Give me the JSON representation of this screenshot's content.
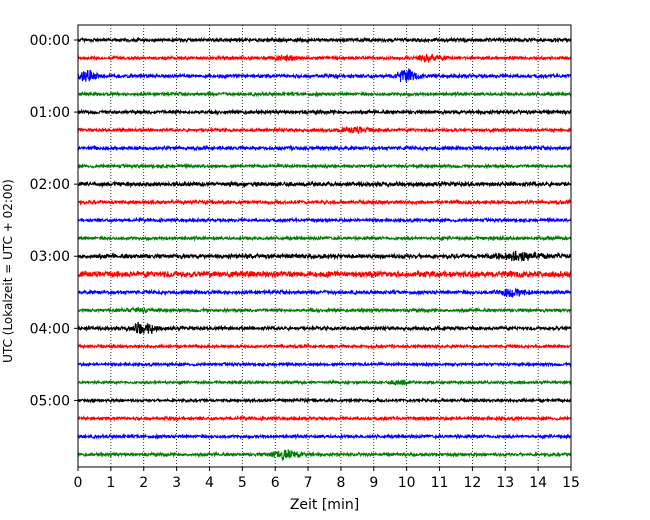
{
  "chart_data": {
    "type": "line",
    "title": "",
    "xlabel": "Zeit  [min]",
    "ylabel": "UTC (Lokalzeit = UTC + 02:00)",
    "xlim": [
      0,
      15
    ],
    "x_ticks": [
      0,
      1,
      2,
      3,
      4,
      5,
      6,
      7,
      8,
      9,
      10,
      11,
      12,
      13,
      14,
      15
    ],
    "y_tick_labels": [
      "00:00",
      "01:00",
      "02:00",
      "03:00",
      "04:00",
      "05:00"
    ],
    "y_tick_rows": [
      0,
      4,
      8,
      12,
      16,
      20
    ],
    "grid": "vertical-dotted",
    "trace_interval_min": 15,
    "row_colors": [
      "#000000",
      "#ff0000",
      "#0000ff",
      "#008000"
    ],
    "traces": [
      {
        "start": "00:00",
        "noise": 0.25,
        "events": []
      },
      {
        "start": "00:15",
        "noise": 0.22,
        "events": [
          {
            "t": 6.3,
            "amp": 0.35,
            "width": 0.6
          },
          {
            "t": 10.7,
            "amp": 0.45,
            "width": 0.7
          }
        ]
      },
      {
        "start": "00:30",
        "noise": 0.25,
        "events": [
          {
            "t": 0.3,
            "amp": 0.9,
            "width": 0.5
          },
          {
            "t": 10.0,
            "amp": 0.8,
            "width": 0.6
          }
        ]
      },
      {
        "start": "00:45",
        "noise": 0.22,
        "events": []
      },
      {
        "start": "01:00",
        "noise": 0.25,
        "events": []
      },
      {
        "start": "01:15",
        "noise": 0.22,
        "events": [
          {
            "t": 8.5,
            "amp": 0.35,
            "width": 1.0
          }
        ]
      },
      {
        "start": "01:30",
        "noise": 0.25,
        "events": []
      },
      {
        "start": "01:45",
        "noise": 0.22,
        "events": []
      },
      {
        "start": "02:00",
        "noise": 0.3,
        "events": []
      },
      {
        "start": "02:15",
        "noise": 0.25,
        "events": []
      },
      {
        "start": "02:30",
        "noise": 0.22,
        "events": []
      },
      {
        "start": "02:45",
        "noise": 0.22,
        "events": []
      },
      {
        "start": "03:00",
        "noise": 0.3,
        "events": [
          {
            "t": 13.5,
            "amp": 0.45,
            "width": 1.5
          }
        ]
      },
      {
        "start": "03:15",
        "noise": 0.45,
        "events": []
      },
      {
        "start": "03:30",
        "noise": 0.25,
        "events": [
          {
            "t": 13.2,
            "amp": 0.5,
            "width": 0.8
          }
        ]
      },
      {
        "start": "03:45",
        "noise": 0.22,
        "events": [
          {
            "t": 1.8,
            "amp": 0.25,
            "width": 0.8
          }
        ]
      },
      {
        "start": "04:00",
        "noise": 0.25,
        "events": [
          {
            "t": 2.0,
            "amp": 1.0,
            "width": 0.6
          }
        ]
      },
      {
        "start": "04:15",
        "noise": 0.2,
        "events": []
      },
      {
        "start": "04:30",
        "noise": 0.2,
        "events": []
      },
      {
        "start": "04:45",
        "noise": 0.18,
        "events": [
          {
            "t": 9.8,
            "amp": 0.4,
            "width": 0.5
          }
        ]
      },
      {
        "start": "05:00",
        "noise": 0.2,
        "events": []
      },
      {
        "start": "05:15",
        "noise": 0.22,
        "events": []
      },
      {
        "start": "05:30",
        "noise": 0.22,
        "events": []
      },
      {
        "start": "05:45",
        "noise": 0.22,
        "events": [
          {
            "t": 6.3,
            "amp": 0.6,
            "width": 0.9
          }
        ]
      }
    ]
  }
}
